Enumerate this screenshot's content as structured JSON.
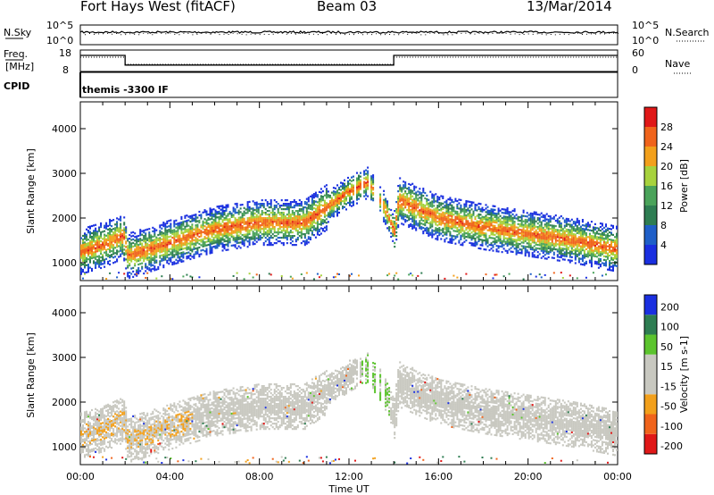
{
  "header": {
    "station": "Fort Hays West (fitACF)",
    "beam": "Beam 03",
    "date": "13/Mar/2014"
  },
  "panels": {
    "noise_left_label": "N.Sky",
    "noise_left_ticks": [
      "10^5",
      "10^0"
    ],
    "noise_right_label": "N.Search",
    "noise_right_ticks": [
      "10^5",
      "10^0"
    ],
    "freq_left_label_1": "Freq.",
    "freq_left_label_2": "[MHz]",
    "freq_left_ticks": [
      "18",
      "8"
    ],
    "freq_right_label": "Nave",
    "freq_right_ticks": [
      "60",
      "0"
    ],
    "cpid_label": "CPID",
    "cpid_value": "themis -3300 IF"
  },
  "colors": {
    "power": [
      "#1a2fe0",
      "#1f5fc8",
      "#2e7d52",
      "#4aa35a",
      "#a7d23d",
      "#f2a01c",
      "#f0641c",
      "#e01818"
    ],
    "velocity": [
      "#e01818",
      "#f0641c",
      "#f2a01c",
      "#c8c8c0",
      "#c8c8c0",
      "#5cc42e",
      "#2e7d52",
      "#1a2fe0"
    ],
    "velocity_scatter": "#c8c8c0",
    "velocity_positive": "#5cc42e",
    "velocity_negative": "#f2a01c"
  },
  "chart_data": [
    {
      "type": "heatmap",
      "panel": "power",
      "xlabel": "",
      "ylabel": "Slant Range [km]",
      "x_ticks": [
        "00:00",
        "04:00",
        "08:00",
        "12:00",
        "16:00",
        "20:00",
        "00:00"
      ],
      "x_range_hours": [
        0,
        24
      ],
      "yticks": [
        "1000",
        "2000",
        "3000",
        "4000"
      ],
      "ylim": [
        600,
        4600
      ],
      "colorbar_label": "Power [dB]",
      "colorbar_ticks": [
        "4",
        "8",
        "12",
        "16",
        "20",
        "24",
        "28"
      ],
      "colorbar_range": [
        0,
        32
      ],
      "echo_band_center_km": {
        "hours": [
          0,
          1,
          1.9,
          2.1,
          4,
          6,
          8,
          10,
          11,
          12,
          12.8,
          13.5,
          14,
          14.2,
          16,
          18,
          20,
          22,
          24
        ],
        "range": [
          1250,
          1400,
          1600,
          1150,
          1450,
          1750,
          1900,
          1900,
          2250,
          2600,
          2800,
          2300,
          1700,
          2400,
          2000,
          1800,
          1650,
          1500,
          1300
        ]
      }
    },
    {
      "type": "heatmap",
      "panel": "velocity",
      "xlabel": "Time UT",
      "ylabel": "Slant Range [km]",
      "x_ticks": [
        "00:00",
        "04:00",
        "08:00",
        "12:00",
        "16:00",
        "20:00",
        "00:00"
      ],
      "x_range_hours": [
        0,
        24
      ],
      "yticks": [
        "1000",
        "2000",
        "3000",
        "4000"
      ],
      "ylim": [
        600,
        4600
      ],
      "colorbar_label": "Velocity [m s-1]",
      "colorbar_ticks": [
        "200",
        "100",
        "50",
        "15",
        "-15",
        "-50",
        "-100",
        "-200"
      ],
      "colorbar_range": [
        -200,
        200
      ]
    }
  ]
}
